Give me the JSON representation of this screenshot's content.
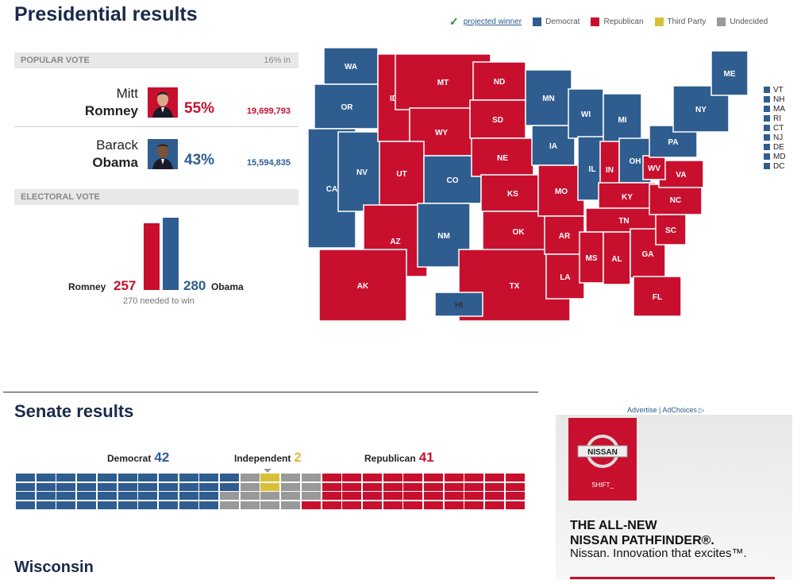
{
  "presidential": {
    "title": "Presidential results",
    "legend": {
      "projected": "projected winner",
      "dem": "Democrat",
      "rep": "Republican",
      "third": "Third Party",
      "undecided": "Undecided"
    },
    "popular_vote": {
      "label": "POPULAR VOTE",
      "reporting": "16% in"
    },
    "candidates": [
      {
        "first": "Mitt",
        "last": "Romney",
        "pct": "55%",
        "votes": "19,699,793"
      },
      {
        "first": "Barack",
        "last": "Obama",
        "pct": "43%",
        "votes": "15,594,835"
      }
    ],
    "electoral_vote": {
      "label": "ELECTORAL VOTE",
      "romney_label": "Romney",
      "romney": 257,
      "obama_label": "Obama",
      "obama": 280,
      "needed": "270 needed to win"
    },
    "small_states": [
      "VT",
      "NH",
      "MA",
      "RI",
      "CT",
      "NJ",
      "DE",
      "MD",
      "DC"
    ]
  },
  "states": {
    "WA": "D",
    "OR": "D",
    "CA": "D",
    "NV": "D",
    "ID": "R",
    "MT": "R",
    "WY": "R",
    "UT": "R",
    "AZ": "R",
    "CO": "D",
    "NM": "D",
    "ND": "R",
    "SD": "R",
    "NE": "R",
    "KS": "R",
    "OK": "R",
    "TX": "R",
    "MN": "D",
    "IA": "D",
    "MO": "R",
    "AR": "R",
    "LA": "R",
    "WI": "D",
    "IL": "D",
    "MI": "D",
    "IN": "R",
    "OH": "D",
    "KY": "R",
    "TN": "R",
    "MS": "R",
    "AL": "R",
    "GA": "R",
    "FL": "R",
    "SC": "R",
    "NC": "R",
    "VA": "R",
    "WV": "R",
    "PA": "D",
    "NY": "D",
    "ME": "D",
    "AK": "R",
    "HI": "D"
  },
  "colors": {
    "dem": "#2f5d8f",
    "rep": "#c8102e",
    "third": "#d9c03a",
    "undecided": "#999999"
  },
  "senate": {
    "title": "Senate results",
    "dem_label": "Democrat",
    "dem": 42,
    "ind_label": "Independent",
    "ind": 2,
    "rep_label": "Republican",
    "rep": 41
  },
  "ad": {
    "advertise": "Advertise",
    "adchoices": "AdChoices",
    "brand": "NISSAN",
    "shift": "SHIFT_",
    "headline1": "THE ALL-NEW",
    "headline2": "NISSAN PATHFINDER®.",
    "tagline": "Nissan. Innovation that excites™."
  },
  "next_section": "Wisconsin"
}
